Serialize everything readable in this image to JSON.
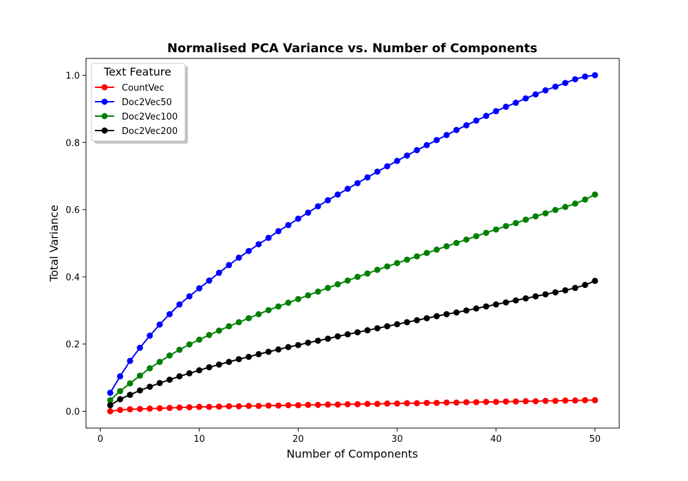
{
  "chart_data": {
    "type": "line",
    "title": "Normalised PCA Variance vs. Number of Components",
    "xlabel": "Number of Components",
    "ylabel": "Total Variance",
    "xlim": [
      -1.45,
      52.45
    ],
    "ylim": [
      -0.05,
      1.05
    ],
    "xticks": [
      0,
      10,
      20,
      30,
      40,
      50
    ],
    "yticks": [
      0.0,
      0.2,
      0.4,
      0.6,
      0.8,
      1.0
    ],
    "xtick_labels": [
      "0",
      "10",
      "20",
      "30",
      "40",
      "50"
    ],
    "ytick_labels": [
      "0.0",
      "0.2",
      "0.4",
      "0.6",
      "0.8",
      "1.0"
    ],
    "grid": false,
    "legend": {
      "title": "Text Feature",
      "placement": "top-left"
    },
    "x": [
      1,
      2,
      3,
      4,
      5,
      6,
      7,
      8,
      9,
      10,
      11,
      12,
      13,
      14,
      15,
      16,
      17,
      18,
      19,
      20,
      21,
      22,
      23,
      24,
      25,
      26,
      27,
      28,
      29,
      30,
      31,
      32,
      33,
      34,
      35,
      36,
      37,
      38,
      39,
      40,
      41,
      42,
      43,
      44,
      45,
      46,
      47,
      48,
      49,
      50
    ],
    "series": [
      {
        "name": "CountVec",
        "color": "#ff0000",
        "values": [
          0.0,
          0.004,
          0.006,
          0.007,
          0.008,
          0.009,
          0.01,
          0.011,
          0.012,
          0.013,
          0.013,
          0.014,
          0.015,
          0.015,
          0.016,
          0.016,
          0.017,
          0.017,
          0.018,
          0.018,
          0.019,
          0.019,
          0.02,
          0.02,
          0.021,
          0.021,
          0.022,
          0.022,
          0.023,
          0.023,
          0.024,
          0.024,
          0.025,
          0.025,
          0.026,
          0.026,
          0.027,
          0.027,
          0.028,
          0.028,
          0.029,
          0.029,
          0.03,
          0.03,
          0.031,
          0.031,
          0.032,
          0.032,
          0.033,
          0.033
        ]
      },
      {
        "name": "Doc2Vec50",
        "color": "#0000ff",
        "values": [
          0.055,
          0.104,
          0.15,
          0.189,
          0.225,
          0.258,
          0.289,
          0.318,
          0.342,
          0.366,
          0.389,
          0.412,
          0.435,
          0.457,
          0.477,
          0.497,
          0.516,
          0.536,
          0.554,
          0.573,
          0.591,
          0.61,
          0.628,
          0.645,
          0.662,
          0.679,
          0.696,
          0.713,
          0.729,
          0.745,
          0.761,
          0.777,
          0.792,
          0.807,
          0.822,
          0.837,
          0.851,
          0.865,
          0.879,
          0.893,
          0.906,
          0.918,
          0.931,
          0.943,
          0.955,
          0.966,
          0.977,
          0.988,
          0.996,
          1.0
        ]
      },
      {
        "name": "Doc2Vec100",
        "color": "#008000",
        "values": [
          0.033,
          0.06,
          0.083,
          0.106,
          0.128,
          0.147,
          0.166,
          0.183,
          0.199,
          0.213,
          0.227,
          0.24,
          0.253,
          0.265,
          0.277,
          0.289,
          0.301,
          0.312,
          0.323,
          0.334,
          0.345,
          0.356,
          0.367,
          0.378,
          0.389,
          0.4,
          0.41,
          0.421,
          0.431,
          0.441,
          0.451,
          0.461,
          0.471,
          0.481,
          0.491,
          0.501,
          0.511,
          0.521,
          0.531,
          0.541,
          0.551,
          0.56,
          0.57,
          0.58,
          0.589,
          0.599,
          0.608,
          0.618,
          0.63,
          0.645
        ]
      },
      {
        "name": "Doc2Vec200",
        "color": "#000000",
        "values": [
          0.018,
          0.036,
          0.049,
          0.062,
          0.073,
          0.084,
          0.094,
          0.104,
          0.113,
          0.122,
          0.131,
          0.139,
          0.147,
          0.155,
          0.162,
          0.17,
          0.177,
          0.184,
          0.191,
          0.197,
          0.204,
          0.21,
          0.216,
          0.223,
          0.229,
          0.235,
          0.241,
          0.247,
          0.253,
          0.259,
          0.265,
          0.271,
          0.277,
          0.283,
          0.289,
          0.294,
          0.3,
          0.306,
          0.312,
          0.318,
          0.324,
          0.33,
          0.336,
          0.342,
          0.348,
          0.354,
          0.36,
          0.367,
          0.376,
          0.388
        ]
      }
    ]
  }
}
